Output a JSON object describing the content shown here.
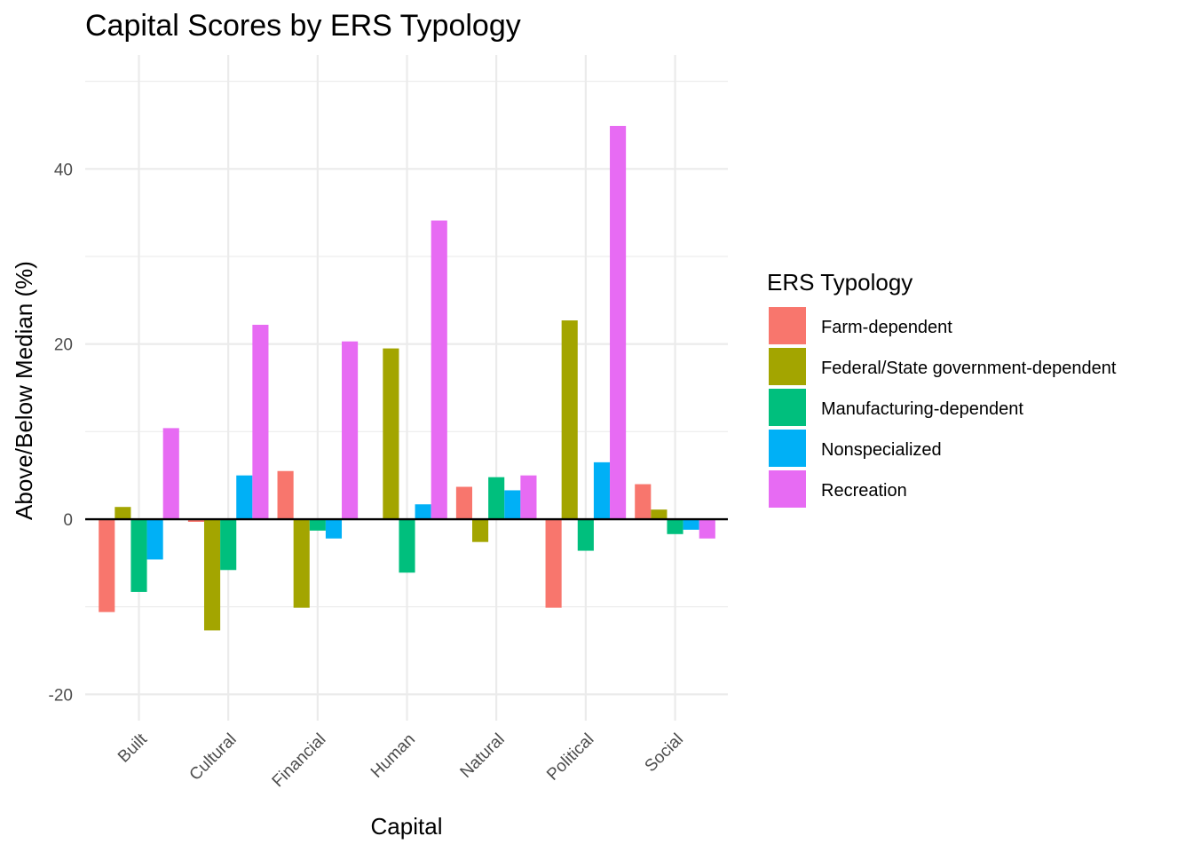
{
  "chart_data": {
    "type": "bar",
    "title": "Capital Scores by ERS Typology",
    "xlabel": "Capital",
    "ylabel": "Above/Below Median (%)",
    "categories": [
      "Built",
      "Cultural",
      "Financial",
      "Human",
      "Natural",
      "Political",
      "Social"
    ],
    "ylim": [
      -23,
      53
    ],
    "yticks": [
      -20,
      0,
      20,
      40
    ],
    "grid": true,
    "legend": {
      "title": "ERS Typology",
      "position": "right"
    },
    "series": [
      {
        "name": "Farm-dependent",
        "color": "#F8766D",
        "values": [
          -10.6,
          -0.3,
          5.5,
          0,
          3.7,
          -10.1,
          4.0
        ]
      },
      {
        "name": "Federal/State government-dependent",
        "color": "#A3A500",
        "values": [
          1.4,
          -12.7,
          -10.1,
          19.5,
          -2.6,
          22.7,
          1.1
        ]
      },
      {
        "name": "Manufacturing-dependent",
        "color": "#00BF7D",
        "values": [
          -8.3,
          -5.8,
          -1.3,
          -6.1,
          4.8,
          -3.6,
          -1.7
        ]
      },
      {
        "name": "Nonspecialized",
        "color": "#00B0F6",
        "values": [
          -4.6,
          5.0,
          -2.2,
          1.7,
          3.3,
          6.5,
          -1.2
        ]
      },
      {
        "name": "Recreation",
        "color": "#E76BF3",
        "values": [
          10.4,
          22.2,
          20.3,
          34.1,
          5.0,
          44.9,
          -2.2
        ]
      }
    ]
  }
}
